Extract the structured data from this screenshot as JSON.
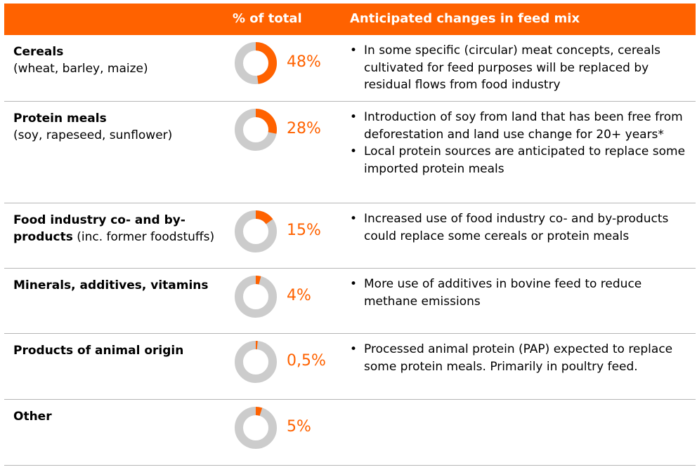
{
  "header": {
    "col_pct": "% of total",
    "col_changes": "Anticipated changes in feed mix"
  },
  "colors": {
    "accent": "#FF6200",
    "ring": "#CCCCCC"
  },
  "rows": [
    {
      "title": "Cereals",
      "subtitle": "(wheat, barley, maize)",
      "pct_label": "48%",
      "pct": 48,
      "notes": [
        "In some specific (circular) meat concepts, cereals cultivated for feed purposes will be replaced by residual flows from food industry"
      ]
    },
    {
      "title": "Protein meals",
      "subtitle": "(soy, rapeseed, sunflower)",
      "pct_label": "28%",
      "pct": 28,
      "notes": [
        "Introduction of soy from land that has been free from deforestation and land use change for 20+ years*",
        "Local protein sources are anticipated to replace some imported protein meals"
      ]
    },
    {
      "title": "Food industry co- and by-products",
      "subtitle": "(inc. former foodstuffs)",
      "pct_label": "15%",
      "pct": 15,
      "notes": [
        "Increased use of food industry co- and by-products could replace some cereals or protein meals"
      ]
    },
    {
      "title": "Minerals, additives, vitamins",
      "subtitle": "",
      "pct_label": "4%",
      "pct": 4,
      "notes": [
        "More use of additives in bovine feed to reduce methane emissions"
      ]
    },
    {
      "title": "Products of animal origin",
      "subtitle": "",
      "pct_label": "0,5%",
      "pct": 0.5,
      "notes": [
        "Processed animal protein (PAP) expected to replace some protein meals. Primarily in poultry feed."
      ]
    },
    {
      "title": "Other",
      "subtitle": "",
      "pct_label": "5%",
      "pct": 5,
      "notes": []
    }
  ]
}
